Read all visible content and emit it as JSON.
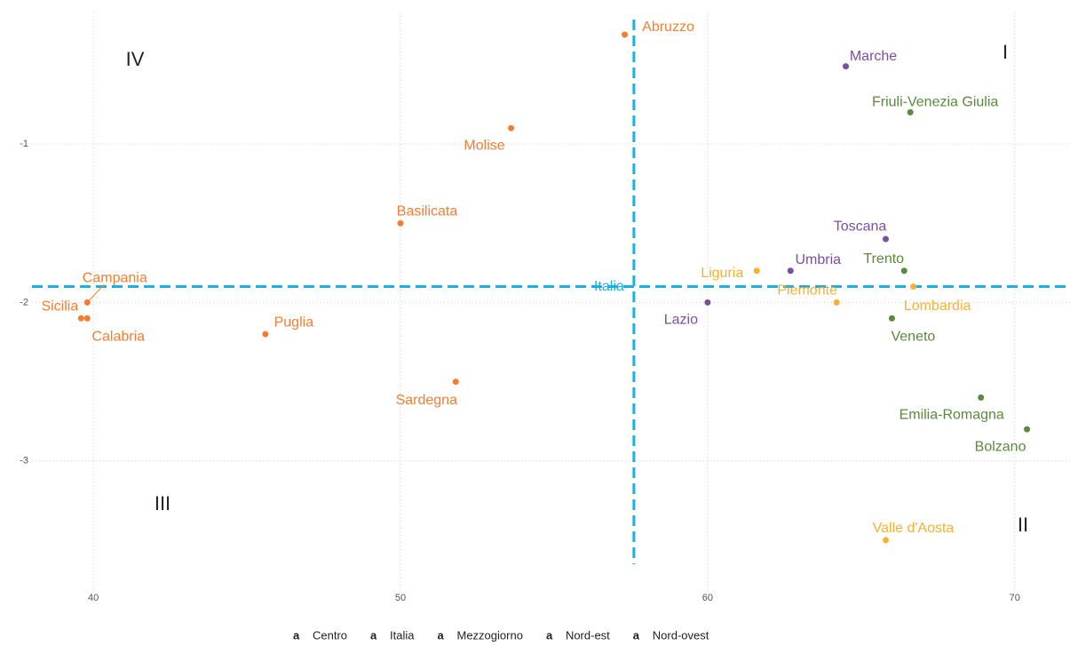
{
  "chart_data": {
    "type": "scatter",
    "xlim": [
      38,
      71.8
    ],
    "ylim": [
      -3.82,
      -0.17
    ],
    "xticks": [
      40,
      50,
      60,
      70
    ],
    "yticks": [
      -1,
      -2,
      -3
    ],
    "grid": true,
    "vline": 57.6,
    "hline": -1.9,
    "reference_color": "#1ab0e0",
    "legend_position": "bottom",
    "annotations": [
      "I",
      "II",
      "III",
      "IV"
    ],
    "series": [
      {
        "name": "Centro",
        "color": "#7b4fa0",
        "labels": [
          "Marche",
          "Toscana",
          "Umbria",
          "Lazio"
        ],
        "x": [
          64.5,
          65.8,
          62.7,
          60.0
        ],
        "y": [
          -0.51,
          -1.6,
          -1.8,
          -2.0
        ]
      },
      {
        "name": "Italia",
        "color": "#1ab0e0",
        "labels": [
          "Italia"
        ],
        "x": [
          57.6
        ],
        "y": [
          -1.9
        ]
      },
      {
        "name": "Mezzogiorno",
        "color": "#f47d30",
        "labels": [
          "Abruzzo",
          "Molise",
          "Basilicata",
          "Campania",
          "Sicilia",
          "Calabria",
          "Puglia",
          "Sardegna"
        ],
        "x": [
          57.3,
          53.6,
          50.0,
          39.8,
          39.6,
          39.8,
          45.6,
          51.8
        ],
        "y": [
          -0.31,
          -0.9,
          -1.5,
          -2.0,
          -2.1,
          -2.1,
          -2.2,
          -2.5
        ]
      },
      {
        "name": "Nord-est",
        "color": "#5a8a3a",
        "labels": [
          "Friuli-Venezia Giulia",
          "Trento",
          "Veneto",
          "Emilia-Romagna",
          "Bolzano"
        ],
        "x": [
          66.6,
          66.4,
          66.0,
          68.9,
          70.4
        ],
        "y": [
          -0.8,
          -1.8,
          -2.1,
          -2.6,
          -2.8
        ]
      },
      {
        "name": "Nord-ovest",
        "color": "#f8b030",
        "labels": [
          "Liguria",
          "Piemonte",
          "Lombardia",
          "Valle d'Aosta"
        ],
        "x": [
          61.6,
          64.2,
          66.7,
          65.8
        ],
        "y": [
          -1.8,
          -2.0,
          -1.9,
          -3.5
        ]
      }
    ]
  }
}
